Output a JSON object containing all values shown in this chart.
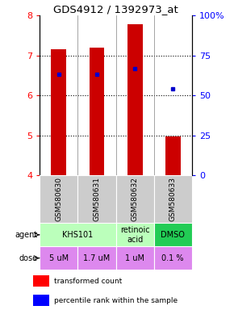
{
  "title": "GDS4912 / 1392973_at",
  "samples": [
    "GSM580630",
    "GSM580631",
    "GSM580632",
    "GSM580633"
  ],
  "bar_bottoms": [
    4.0,
    4.0,
    4.0,
    4.0
  ],
  "bar_tops": [
    7.15,
    7.2,
    7.78,
    4.97
  ],
  "percentile_values": [
    6.52,
    6.52,
    6.67,
    6.17
  ],
  "ylim_left": [
    4,
    8
  ],
  "ylim_right": [
    0,
    100
  ],
  "yticks_left": [
    4,
    5,
    6,
    7,
    8
  ],
  "yticks_right": [
    0,
    25,
    50,
    75,
    100
  ],
  "ytick_labels_right": [
    "0",
    "25",
    "50",
    "75",
    "100%"
  ],
  "bar_color": "#cc0000",
  "dot_color": "#0000cc",
  "agent_spans": [
    [
      0,
      1,
      "KHS101",
      "#bbffbb"
    ],
    [
      2,
      2,
      "retinoic\nacid",
      "#bbffbb"
    ],
    [
      3,
      3,
      "DMSO",
      "#22cc55"
    ]
  ],
  "dose_labels": [
    "5 uM",
    "1.7 uM",
    "1 uM",
    "0.1 %"
  ],
  "dose_color": "#dd88ee",
  "sample_bg": "#cccccc",
  "legend_red": "transformed count",
  "legend_blue": "percentile rank within the sample",
  "bar_width": 0.4
}
